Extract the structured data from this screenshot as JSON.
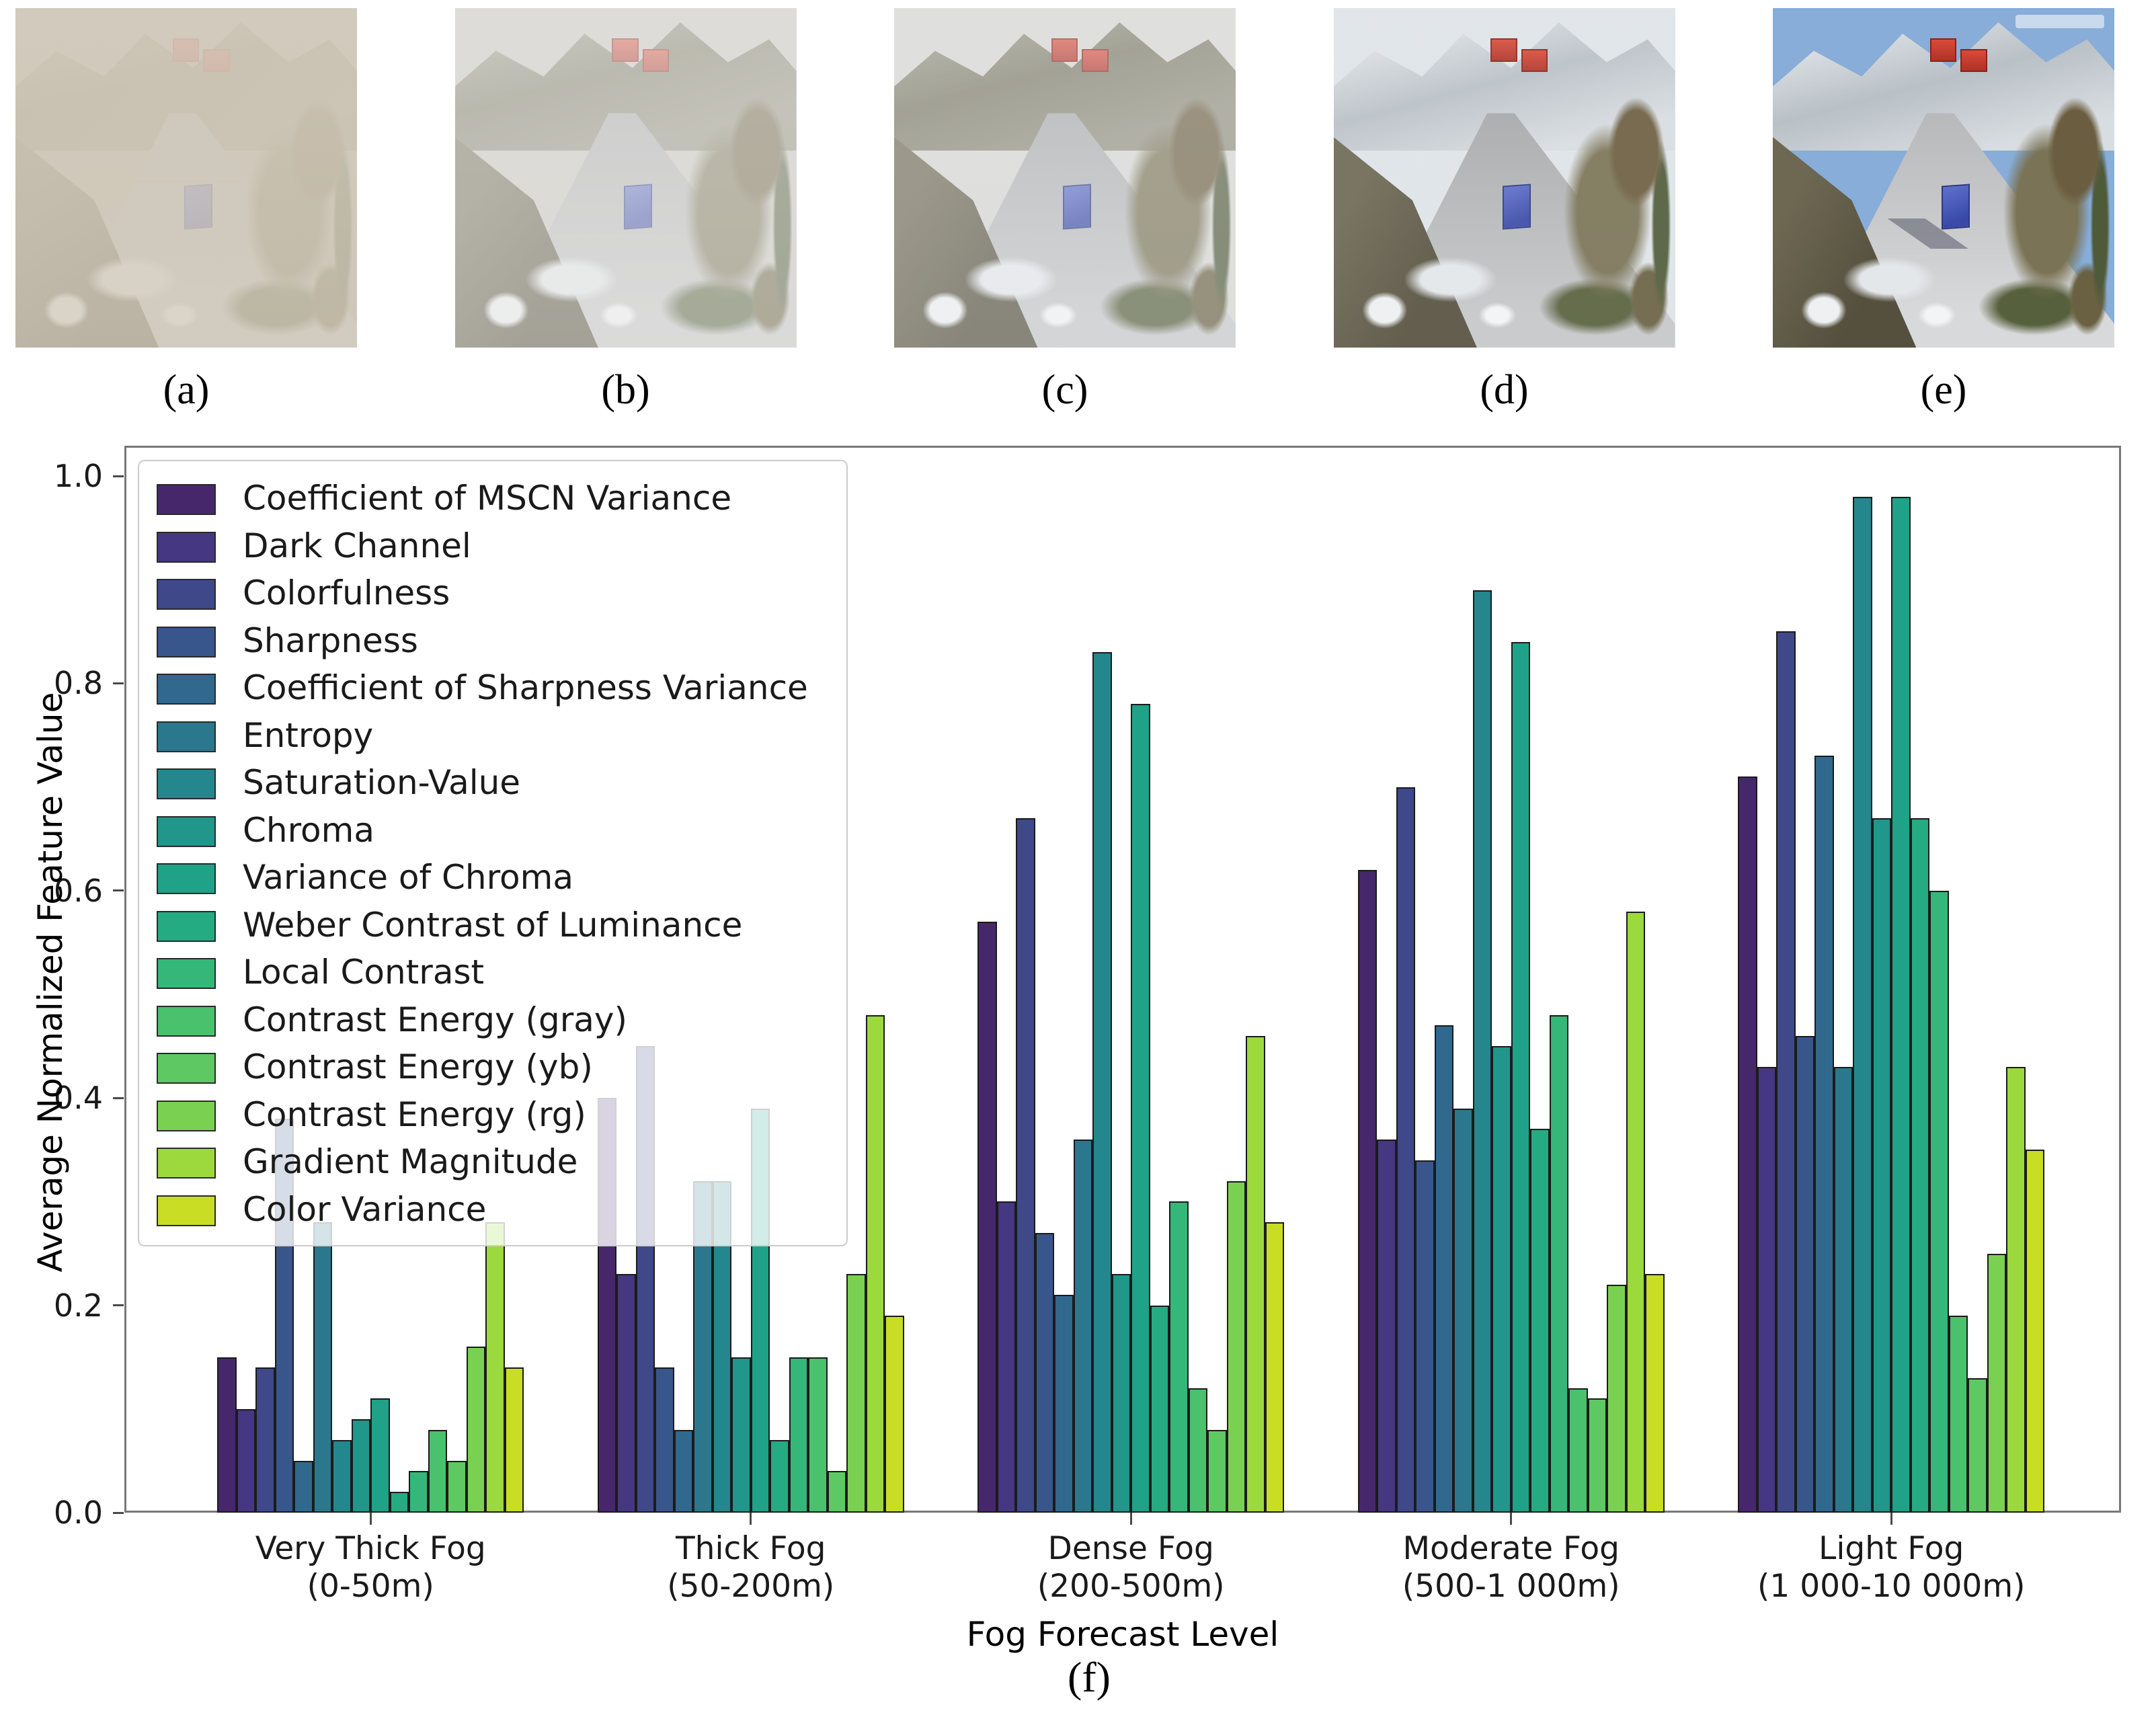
{
  "figure": {
    "panels": [
      {
        "label": "(a)",
        "fog": 0.9,
        "sky": "#b5b2a8",
        "fog_tint": "213,205,190",
        "clear": false,
        "sunny": false
      },
      {
        "label": "(b)",
        "fog": 0.6,
        "sky": "#c8c6c0",
        "fog_tint": "235,235,232",
        "clear": false,
        "sunny": false
      },
      {
        "label": "(c)",
        "fog": 0.38,
        "sky": "#d6d6d2",
        "fog_tint": "238,240,242",
        "clear": false,
        "sunny": false
      },
      {
        "label": "(d)",
        "fog": 0.1,
        "sky": "#dfe4e8",
        "fog_tint": "240,242,244",
        "clear": true,
        "sunny": false
      },
      {
        "label": "(e)",
        "fog": 0.0,
        "sky": "#87add8",
        "fog_tint": "240,242,244",
        "clear": true,
        "sunny": true
      }
    ],
    "panel_label_f": "(f)"
  },
  "chart_data": {
    "type": "bar",
    "title": "",
    "xlabel": "Fog Forecast Level",
    "ylabel": "Average Normalized Feature Value",
    "ylim": [
      0,
      1.0
    ],
    "ytick_labels": [
      "0.0",
      "0.2",
      "0.4",
      "0.6",
      "0.8",
      "1.0"
    ],
    "grid": false,
    "legend_position": "upper left",
    "categories": [
      [
        "Very Thick Fog",
        "(0-50m)"
      ],
      [
        "Thick Fog",
        "(50-200m)"
      ],
      [
        "Dense Fog",
        "(200-500m)"
      ],
      [
        "Moderate Fog",
        "(500-1 000m)"
      ],
      [
        "Light Fog",
        "(1 000-10 000m)"
      ]
    ],
    "series": [
      {
        "name": "Coefficient of MSCN Variance",
        "color": "#46276b",
        "values": [
          0.15,
          0.4,
          0.57,
          0.62,
          0.71
        ]
      },
      {
        "name": "Dark Channel",
        "color": "#453781",
        "values": [
          0.1,
          0.23,
          0.3,
          0.36,
          0.43
        ]
      },
      {
        "name": "Colorfulness",
        "color": "#3f4889",
        "values": [
          0.14,
          0.45,
          0.67,
          0.7,
          0.85
        ]
      },
      {
        "name": "Sharpness",
        "color": "#39568c",
        "values": [
          0.38,
          0.14,
          0.27,
          0.34,
          0.46
        ]
      },
      {
        "name": "Coefficient of Sharpness Variance",
        "color": "#31688e",
        "values": [
          0.05,
          0.08,
          0.21,
          0.47,
          0.73
        ]
      },
      {
        "name": "Entropy",
        "color": "#2b788e",
        "values": [
          0.28,
          0.32,
          0.36,
          0.39,
          0.43
        ]
      },
      {
        "name": "Saturation-Value",
        "color": "#24878e",
        "values": [
          0.07,
          0.32,
          0.83,
          0.89,
          0.98
        ]
      },
      {
        "name": "Chroma",
        "color": "#21968b",
        "values": [
          0.09,
          0.15,
          0.23,
          0.45,
          0.67
        ]
      },
      {
        "name": "Variance of Chroma",
        "color": "#1fa287",
        "values": [
          0.11,
          0.39,
          0.78,
          0.84,
          0.98
        ]
      },
      {
        "name": "Weber Contrast of Luminance",
        "color": "#25ab81",
        "values": [
          0.02,
          0.07,
          0.2,
          0.37,
          0.67
        ]
      },
      {
        "name": "Local Contrast",
        "color": "#35b779",
        "values": [
          0.04,
          0.15,
          0.3,
          0.48,
          0.6
        ]
      },
      {
        "name": "Contrast Energy (gray)",
        "color": "#4ac16d",
        "values": [
          0.08,
          0.15,
          0.12,
          0.12,
          0.19
        ]
      },
      {
        "name": "Contrast Energy (yb)",
        "color": "#5ec962",
        "values": [
          0.05,
          0.04,
          0.08,
          0.11,
          0.13
        ]
      },
      {
        "name": "Contrast Energy (rg)",
        "color": "#7ad151",
        "values": [
          0.16,
          0.23,
          0.32,
          0.22,
          0.25
        ]
      },
      {
        "name": "Gradient Magnitude",
        "color": "#9bd93c",
        "values": [
          0.28,
          0.48,
          0.46,
          0.58,
          0.43
        ]
      },
      {
        "name": "Color Variance",
        "color": "#c8dd23",
        "values": [
          0.14,
          0.19,
          0.28,
          0.23,
          0.35
        ]
      }
    ]
  }
}
